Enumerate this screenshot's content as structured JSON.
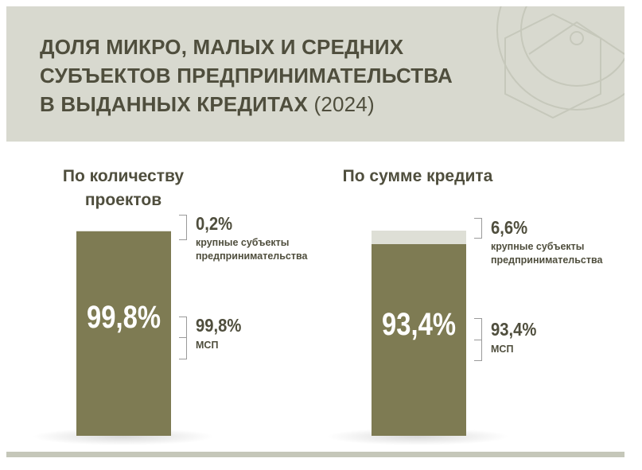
{
  "header": {
    "title": "ДОЛЯ МИКРО, МАЛЫХ И СРЕДНИХ\nСУБЪЕКТОВ ПРЕДПРИНИМАТЕЛЬСТВА\nВ ВЫДАННЫХ КРЕДИТАХ",
    "year": "(2024)"
  },
  "colors": {
    "header_bg": "#d8d9cf",
    "title_text": "#4f4e3d",
    "msp_bar": "#7e7b53",
    "large_bar": "#dedfd6",
    "footer_line": "#c5c7b9"
  },
  "chart_data": [
    {
      "type": "bar",
      "title": "По количеству\nпроектов",
      "categories": [
        "По количеству проектов"
      ],
      "series": [
        {
          "name": "МСП",
          "values": [
            99.8
          ],
          "label": "99,8%",
          "bar_label": "99,8%",
          "desc": "МСП"
        },
        {
          "name": "крупные субъекты предпринимательства",
          "values": [
            0.2
          ],
          "label": "0,2%",
          "desc": "крупные субъекты\nпредпринимательства"
        }
      ],
      "stacked": true,
      "ylim": [
        0,
        100
      ]
    },
    {
      "type": "bar",
      "title": "По сумме кредита",
      "categories": [
        "По сумме кредита"
      ],
      "series": [
        {
          "name": "МСП",
          "values": [
            93.4
          ],
          "label": "93,4%",
          "bar_label": "93,4%",
          "desc": "МСП"
        },
        {
          "name": "крупные субъекты предпринимательства",
          "values": [
            6.6
          ],
          "label": "6,6%",
          "desc": "крупные субъекты\nпредпринимательства"
        }
      ],
      "stacked": true,
      "ylim": [
        0,
        100
      ]
    }
  ]
}
